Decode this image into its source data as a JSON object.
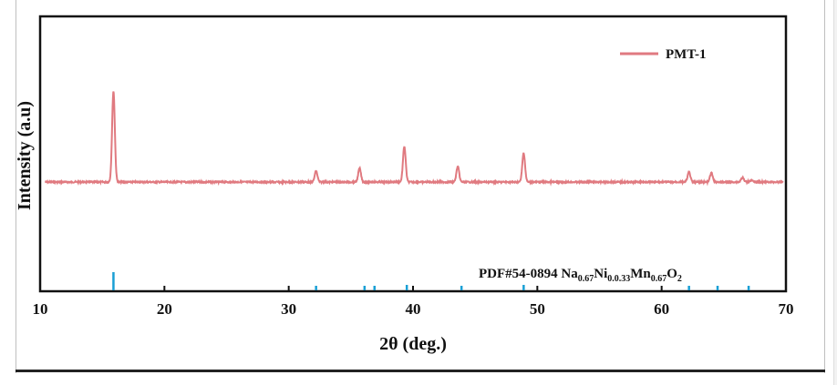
{
  "chart_data": {
    "type": "line",
    "xlabel": "2θ (deg.)",
    "ylabel": "Intensity (a.u)",
    "xlim": [
      10,
      70
    ],
    "x_ticks": [
      10,
      20,
      30,
      40,
      50,
      60,
      70
    ],
    "x_tick_labels": [
      "10",
      "20",
      "30",
      "40",
      "50",
      "60",
      "70"
    ],
    "y_ticks_shown": false,
    "grid": false,
    "legend": {
      "placement": "top-right",
      "entries": [
        "PMT-1"
      ]
    },
    "series": [
      {
        "name": "PMT-1",
        "color": "#e07a80",
        "baseline": 0,
        "peaks": [
          {
            "two_theta": 15.9,
            "intensity": 1.0
          },
          {
            "two_theta": 32.2,
            "intensity": 0.12
          },
          {
            "two_theta": 35.7,
            "intensity": 0.15
          },
          {
            "two_theta": 39.3,
            "intensity": 0.39
          },
          {
            "two_theta": 43.6,
            "intensity": 0.17
          },
          {
            "two_theta": 48.9,
            "intensity": 0.32
          },
          {
            "two_theta": 62.2,
            "intensity": 0.11
          },
          {
            "two_theta": 64.0,
            "intensity": 0.1
          },
          {
            "two_theta": 66.5,
            "intensity": 0.05
          },
          {
            "two_theta": 67.2,
            "intensity": 0.02
          }
        ]
      }
    ],
    "reference": {
      "label_prefix": "PDF#54-0894 Na",
      "label_parts": [
        {
          "text": "PDF#54-0894 Na",
          "sub": false
        },
        {
          "text": "0.67",
          "sub": true
        },
        {
          "text": "Ni",
          "sub": false
        },
        {
          "text": "0.0.33",
          "sub": true
        },
        {
          "text": "Mn",
          "sub": false
        },
        {
          "text": "0.67",
          "sub": true
        },
        {
          "text": "O",
          "sub": false
        },
        {
          "text": "2",
          "sub": true
        }
      ],
      "color": "#1a9fd4",
      "lines": [
        {
          "two_theta": 15.9,
          "intensity": 1.0
        },
        {
          "two_theta": 32.2,
          "intensity": 0.25
        },
        {
          "two_theta": 36.1,
          "intensity": 0.25
        },
        {
          "two_theta": 36.9,
          "intensity": 0.25
        },
        {
          "two_theta": 39.5,
          "intensity": 0.3
        },
        {
          "two_theta": 43.9,
          "intensity": 0.25
        },
        {
          "two_theta": 48.9,
          "intensity": 0.3
        },
        {
          "two_theta": 62.2,
          "intensity": 0.25
        },
        {
          "two_theta": 64.5,
          "intensity": 0.25
        },
        {
          "two_theta": 67.0,
          "intensity": 0.25
        }
      ]
    }
  }
}
